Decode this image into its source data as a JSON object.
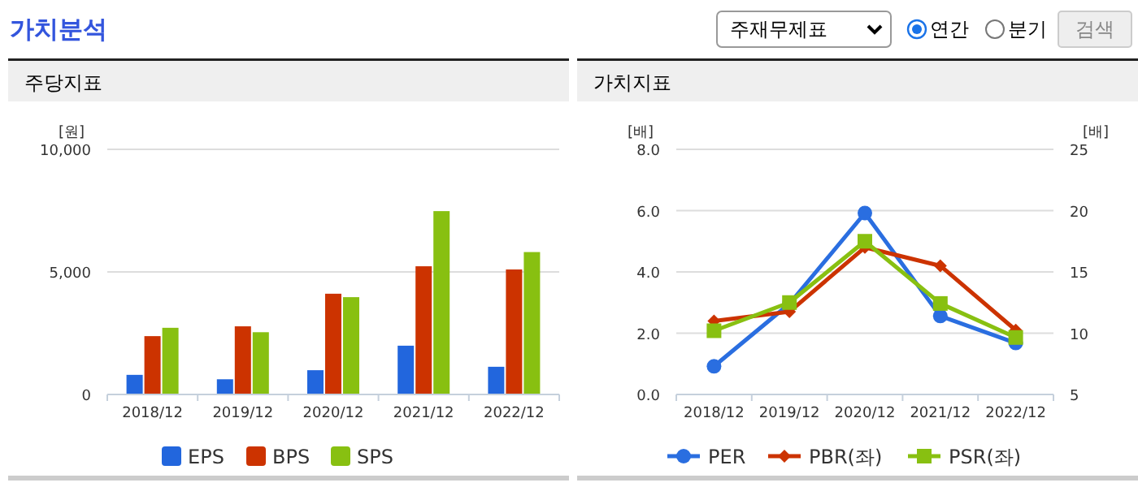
{
  "chart_data": [
    {
      "type": "other",
      "title": "가치분석",
      "annotations": [
        "주재무제표",
        "연간",
        "분기",
        "검색"
      ]
    },
    {
      "type": "bar",
      "title": "주당지표",
      "ylabel": "[원]",
      "categories": [
        "2018/12",
        "2019/12",
        "2020/12",
        "2021/12",
        "2022/12"
      ],
      "series": [
        {
          "name": "EPS",
          "color": "#2266dd",
          "values": [
            800,
            620,
            990,
            1990,
            1130
          ]
        },
        {
          "name": "BPS",
          "color": "#cc3300",
          "values": [
            2380,
            2780,
            4110,
            5230,
            5100
          ]
        },
        {
          "name": "SPS",
          "color": "#88c011",
          "values": [
            2720,
            2540,
            3970,
            7480,
            5810
          ]
        }
      ],
      "ylim": [
        0,
        10000
      ],
      "yticks": [
        {
          "value": 0,
          "label": "0"
        },
        {
          "value": 5000,
          "label": "5,000"
        },
        {
          "value": 10000,
          "label": "10,000"
        }
      ],
      "grid": "y",
      "legend": "bottom"
    },
    {
      "type": "line",
      "title": "가치지표",
      "ylabel": "[배]",
      "y2label": "[배]",
      "categories": [
        "2018/12",
        "2019/12",
        "2020/12",
        "2021/12",
        "2022/12"
      ],
      "series": [
        {
          "name": "PER",
          "color": "#2a6ee0",
          "axis": "y2",
          "marker": "circle",
          "values": [
            7.3,
            12.4,
            19.8,
            11.4,
            9.2
          ]
        },
        {
          "name": "PBR(좌)",
          "color": "#cc3300",
          "marker": "diamond",
          "values": [
            2.4,
            2.7,
            4.8,
            4.2,
            2.1
          ]
        },
        {
          "name": "PSR(좌)",
          "color": "#88c011",
          "marker": "square",
          "values": [
            2.08,
            3.0,
            5.0,
            2.97,
            1.86
          ]
        }
      ],
      "ylim": [
        0,
        8
      ],
      "yticks": [
        {
          "value": 0,
          "label": "0.0"
        },
        {
          "value": 2,
          "label": "2.0"
        },
        {
          "value": 4,
          "label": "4.0"
        },
        {
          "value": 6,
          "label": "6.0"
        },
        {
          "value": 8,
          "label": "8.0"
        }
      ],
      "y2lim": [
        5,
        25
      ],
      "y2ticks": [
        5,
        10,
        15,
        20,
        25
      ],
      "grid": "y",
      "legend": "bottom"
    }
  ]
}
